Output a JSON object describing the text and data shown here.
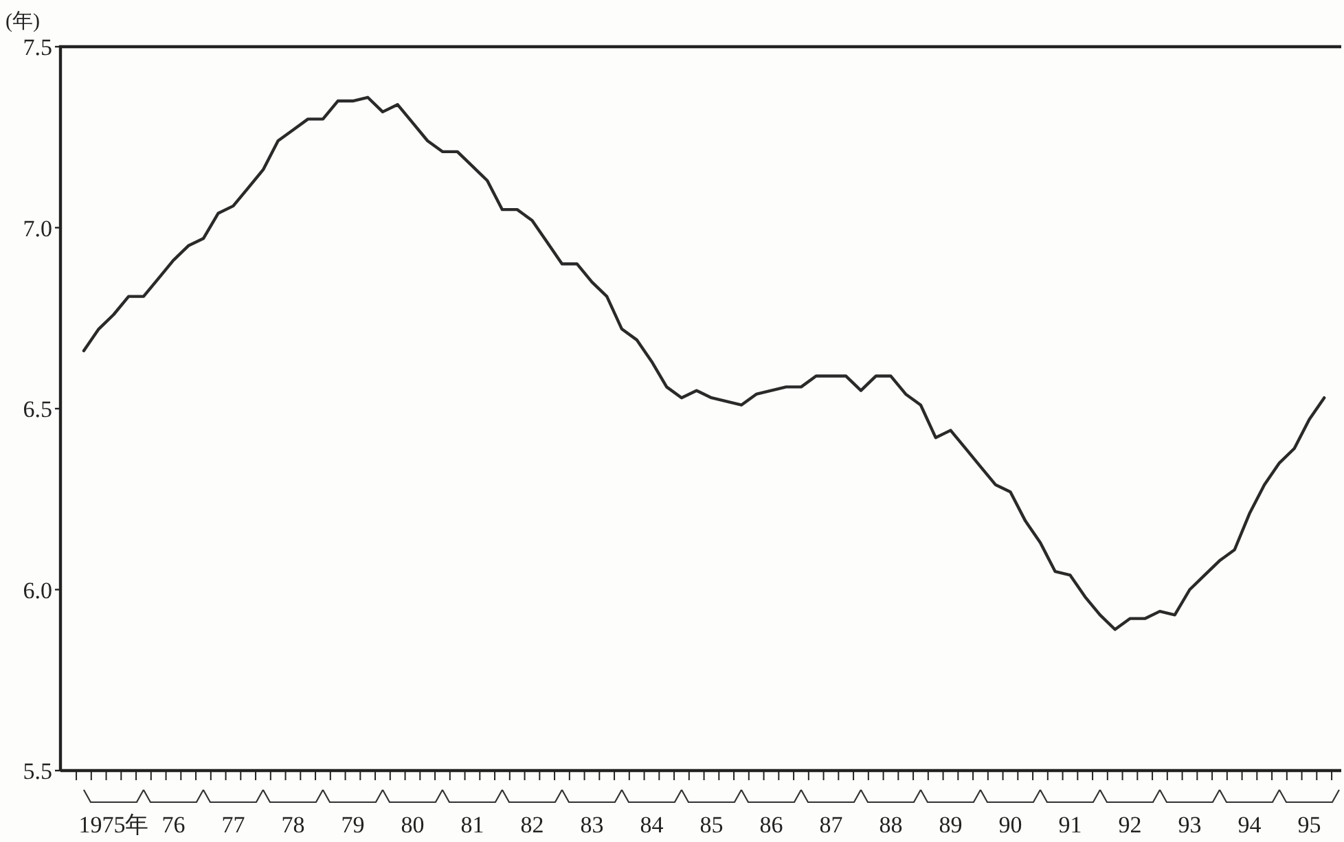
{
  "chart_data": {
    "type": "line",
    "ylabel": "(年)",
    "categories": [
      null,
      null,
      "1975年",
      null,
      null,
      null,
      "76",
      null,
      null,
      null,
      "77",
      null,
      null,
      null,
      "78",
      null,
      null,
      null,
      "79",
      null,
      null,
      null,
      "80",
      null,
      null,
      null,
      "81",
      null,
      null,
      null,
      "82",
      null,
      null,
      null,
      "83",
      null,
      null,
      null,
      "84",
      null,
      null,
      null,
      "85",
      null,
      null,
      null,
      "86",
      null,
      null,
      null,
      "87",
      null,
      null,
      null,
      "88",
      null,
      null,
      null,
      "89",
      null,
      null,
      null,
      "90",
      null,
      null,
      null,
      "91",
      null,
      null,
      null,
      "92",
      null,
      null,
      null,
      "93",
      null,
      null,
      null,
      "94",
      null,
      null,
      null,
      "95",
      null
    ],
    "series": [
      {
        "color": "#2a2a2a",
        "values": [
          6.66,
          6.72,
          6.76,
          6.81,
          6.81,
          6.86,
          6.91,
          6.95,
          6.97,
          7.04,
          7.06,
          7.11,
          7.16,
          7.24,
          7.27,
          7.3,
          7.3,
          7.35,
          7.35,
          7.36,
          7.32,
          7.34,
          7.29,
          7.24,
          7.21,
          7.21,
          7.17,
          7.13,
          7.05,
          7.05,
          7.02,
          6.96,
          6.9,
          6.9,
          6.85,
          6.81,
          6.72,
          6.69,
          6.63,
          6.56,
          6.53,
          6.55,
          6.53,
          6.52,
          6.51,
          6.54,
          6.55,
          6.56,
          6.56,
          6.59,
          6.59,
          6.59,
          6.55,
          6.59,
          6.59,
          6.54,
          6.51,
          6.42,
          6.44,
          6.39,
          6.34,
          6.29,
          6.27,
          6.19,
          6.13,
          6.05,
          6.04,
          5.98,
          5.93,
          5.89,
          5.92,
          5.92,
          5.94,
          5.93,
          6.0,
          6.04,
          6.08,
          6.11,
          6.21,
          6.29,
          6.35,
          6.39,
          6.47,
          6.53
        ]
      }
    ],
    "ylim": [
      5.5,
      7.5
    ],
    "yticks": [
      {
        "value": 5.5,
        "label": "5.5"
      },
      {
        "value": 6,
        "label": "6.0"
      },
      {
        "value": 6.5,
        "label": "6.5"
      },
      {
        "value": 7,
        "label": "7.0"
      },
      {
        "value": 7.5,
        "label": "7.5"
      }
    ]
  }
}
